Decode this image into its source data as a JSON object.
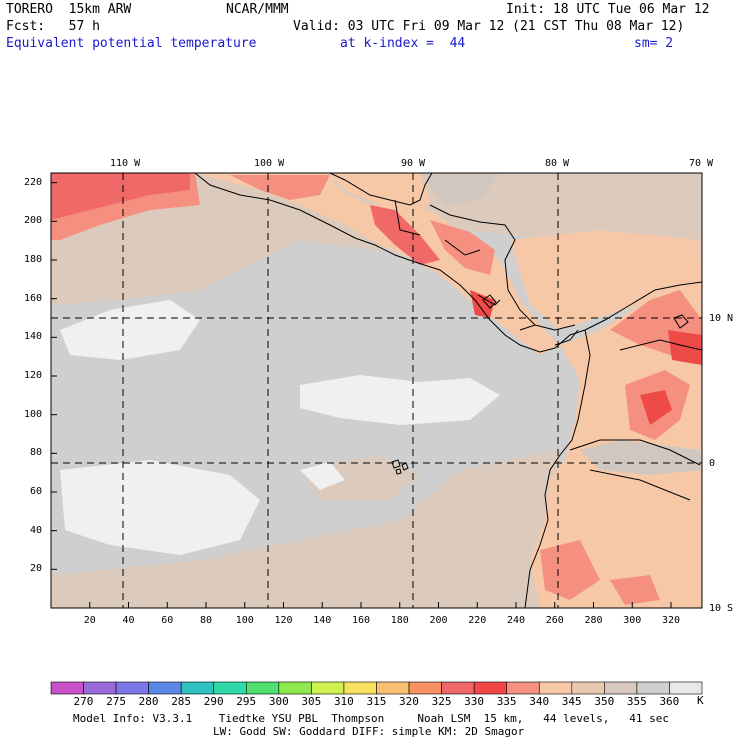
{
  "header": {
    "model": "TORERO  15km ARW",
    "center": "NCAR/MMM",
    "init": "Init: 18 UTC Tue 06 Mar 12",
    "fcst": "Fcst:   57 h",
    "valid": "Valid: 03 UTC Fri 09 Mar 12 (21 CST Thu 08 Mar 12)",
    "field": "Equivalent potential temperature",
    "level": "at k-index =  44",
    "smooth": "sm= 2"
  },
  "axes": {
    "top_labels": [
      "110 W",
      "100 W",
      "90 W",
      "80 W",
      "70 W"
    ],
    "right_labels": [
      "10 N",
      "0",
      "10 S"
    ],
    "left_ticks": [
      "220",
      "200",
      "180",
      "160",
      "140",
      "120",
      "100",
      "80",
      "60",
      "40",
      "20"
    ],
    "bottom_ticks": [
      "20",
      "40",
      "60",
      "80",
      "100",
      "120",
      "140",
      "160",
      "180",
      "200",
      "220",
      "240",
      "260",
      "280",
      "300",
      "320"
    ]
  },
  "legend": {
    "labels": [
      "270",
      "275",
      "280",
      "285",
      "290",
      "295",
      "300",
      "305",
      "310",
      "315",
      "320",
      "325",
      "330",
      "335",
      "340",
      "345",
      "350",
      "355",
      "360"
    ],
    "unit": "K",
    "colors": [
      "#c850c8",
      "#9a6ad8",
      "#7a78e8",
      "#5a88e8",
      "#30c0c0",
      "#30d8a8",
      "#50e070",
      "#90e850",
      "#d0f050",
      "#f8e060",
      "#f8c070",
      "#f89060",
      "#f06868",
      "#f04848",
      "#f89080",
      "#f8c8a8",
      "#e8c8b0",
      "#d8c8c0",
      "#d0d0d0",
      "#e8e8e8"
    ]
  },
  "map_colors": {
    "ocean_low": "#cfcfcf",
    "ocean_warm": "#dccbbc",
    "ocean_cool": "#f0f0f0",
    "land_warm": "#f6c8a8",
    "land_hot": "#f59080",
    "land_hotter": "#f06868",
    "land_hottest": "#ee4a48",
    "land_cool": "#d0c8c0"
  },
  "footer": {
    "line1": "Model Info: V3.3.1    Tiedtke YSU PBL  Thompson     Noah LSM  15 km,   44 levels,   41 sec",
    "line2": "LW: Godd SW: Goddard DIFF: simple KM: 2D Smagor"
  }
}
